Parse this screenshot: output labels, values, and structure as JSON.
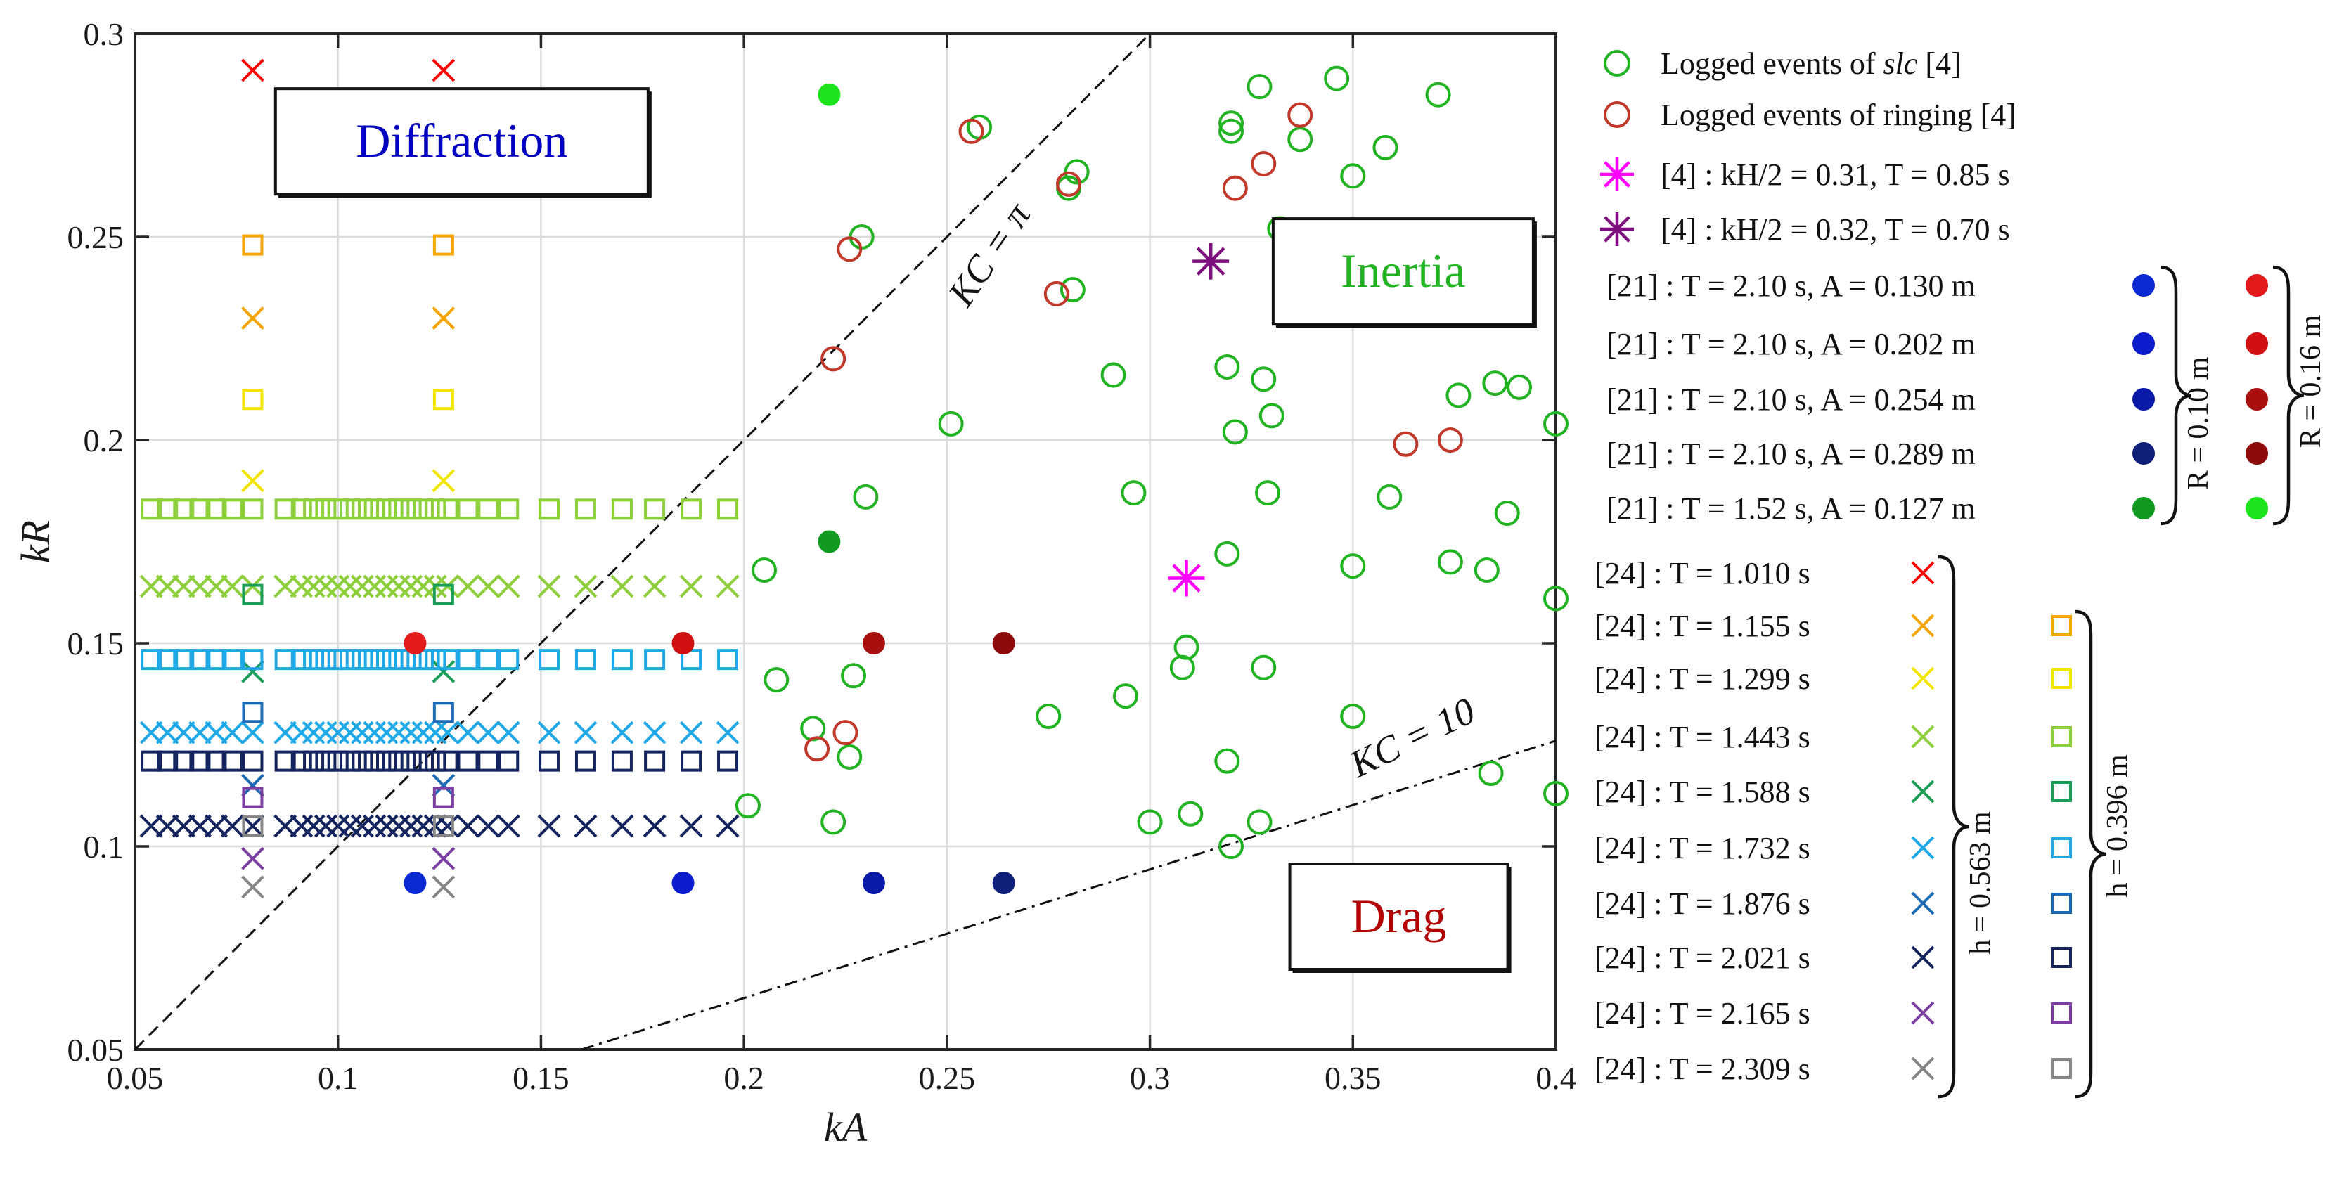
{
  "chart_data": {
    "type": "scatter",
    "title": "",
    "xlabel": "kA",
    "ylabel": "kR",
    "xlim": [
      0.05,
      0.4
    ],
    "ylim": [
      0.05,
      0.3
    ],
    "xticks": [
      0.05,
      0.1,
      0.15,
      0.2,
      0.25,
      0.3,
      0.35,
      0.4
    ],
    "yticks": [
      0.05,
      0.1,
      0.15,
      0.2,
      0.25,
      0.3
    ],
    "xtick_labels": [
      "0.05",
      "0.1",
      "0.15",
      "0.2",
      "0.25",
      "0.3",
      "0.35",
      "0.4"
    ],
    "ytick_labels": [
      "0.05",
      "0.1",
      "0.15",
      "0.2",
      "0.25",
      "0.3"
    ],
    "grid": true,
    "regions": [
      {
        "label": "Diffraction",
        "color": "#0000c0",
        "x": 0.1305,
        "y": 0.2735
      },
      {
        "label": "Inertia",
        "color": "#22b322",
        "x": 0.3624,
        "y": 0.2415
      },
      {
        "label": "Drag",
        "color": "#b30000",
        "x": 0.3613,
        "y": 0.0827
      }
    ],
    "lines": [
      {
        "label": "KC = π",
        "style": "dashed",
        "points": [
          [
            0.05,
            0.05
          ],
          [
            0.3,
            0.3
          ]
        ],
        "label_at": [
          0.263,
          0.244
        ],
        "label_angle": -56
      },
      {
        "label": "KC = 10",
        "style": "dashdot",
        "points": [
          [
            0.16,
            0.05
          ],
          [
            0.4,
            0.126
          ]
        ],
        "label_at": [
          0.366,
          0.124
        ],
        "label_angle": -26
      }
    ],
    "series": [
      {
        "name": "Logged events of slc [4]",
        "label_prefix": "Logged events of ",
        "label_italic": "slc",
        "label_suffix": " [4]",
        "marker": "circle-open",
        "color": "#22b322",
        "x": [
          0.258,
          0.282,
          0.281,
          0.229,
          0.28,
          0.327,
          0.32,
          0.32,
          0.337,
          0.346,
          0.358,
          0.371,
          0.35,
          0.332,
          0.319,
          0.291,
          0.251,
          0.321,
          0.33,
          0.328,
          0.376,
          0.385,
          0.391,
          0.4,
          0.329,
          0.359,
          0.319,
          0.296,
          0.23,
          0.205,
          0.388,
          0.374,
          0.383,
          0.35,
          0.309,
          0.308,
          0.328,
          0.294,
          0.208,
          0.227,
          0.275,
          0.217,
          0.35,
          0.384,
          0.226,
          0.201,
          0.319,
          0.3,
          0.31,
          0.327,
          0.222,
          0.32,
          0.4,
          0.4
        ],
        "y": [
          0.277,
          0.266,
          0.237,
          0.25,
          0.262,
          0.287,
          0.278,
          0.276,
          0.274,
          0.289,
          0.272,
          0.285,
          0.265,
          0.252,
          0.218,
          0.216,
          0.204,
          0.202,
          0.206,
          0.215,
          0.211,
          0.214,
          0.213,
          0.204,
          0.187,
          0.186,
          0.172,
          0.187,
          0.186,
          0.168,
          0.182,
          0.17,
          0.168,
          0.169,
          0.149,
          0.144,
          0.144,
          0.137,
          0.141,
          0.142,
          0.132,
          0.129,
          0.132,
          0.118,
          0.122,
          0.11,
          0.121,
          0.106,
          0.108,
          0.106,
          0.106,
          0.1,
          0.161,
          0.113
        ]
      },
      {
        "name": "Logged events of ringing [4]",
        "marker": "circle-open",
        "color": "#c0392b",
        "x": [
          0.256,
          0.28,
          0.277,
          0.226,
          0.222,
          0.337,
          0.328,
          0.321,
          0.363,
          0.374,
          0.225,
          0.218
        ],
        "y": [
          0.276,
          0.263,
          0.236,
          0.247,
          0.22,
          0.28,
          0.268,
          0.262,
          0.199,
          0.2,
          0.128,
          0.124
        ]
      },
      {
        "name": "[4] : kH/2 = 0.31, T = 0.85 s",
        "marker": "asterisk",
        "color": "#ff00ff",
        "x": [
          0.309
        ],
        "y": [
          0.166
        ]
      },
      {
        "name": "[4] : kH/2 = 0.32, T = 0.70 s",
        "marker": "asterisk",
        "color": "#7d0e7d",
        "x": [
          0.315
        ],
        "y": [
          0.244
        ]
      },
      {
        "name": "[21] : T = 2.10 s, A = 0.130 m",
        "marker": "dot",
        "color_R010": "#0a2bd4",
        "color_R016": "#e31a1c",
        "x_R010": [
          0.119
        ],
        "y_R010": [
          0.091
        ],
        "x_R016": [
          0.119
        ],
        "y_R016": [
          0.15
        ]
      },
      {
        "name": "[21] : T = 2.10 s, A = 0.202 m",
        "marker": "dot",
        "color_R010": "#0a1ccc",
        "color_R016": "#d01010",
        "x_R010": [
          0.185
        ],
        "y_R010": [
          0.091
        ],
        "x_R016": [
          0.185
        ],
        "y_R016": [
          0.15
        ]
      },
      {
        "name": "[21] : T = 2.10 s, A = 0.254 m",
        "marker": "dot",
        "color_R010": "#0a1aa8",
        "color_R016": "#a81010",
        "x_R010": [
          0.232
        ],
        "y_R010": [
          0.091
        ],
        "x_R016": [
          0.232
        ],
        "y_R016": [
          0.15
        ]
      },
      {
        "name": "[21] : T = 2.10 s, A = 0.289 m",
        "marker": "dot",
        "color_R010": "#10207a",
        "color_R016": "#8e0a0a",
        "x_R010": [
          0.264
        ],
        "y_R010": [
          0.091
        ],
        "x_R016": [
          0.264
        ],
        "y_R016": [
          0.15
        ]
      },
      {
        "name": "[21] : T = 1.52 s, A = 0.127 m",
        "marker": "dot",
        "color_R010": "#109a20",
        "color_R016": "#1ce31c",
        "x_R010": [
          0.221
        ],
        "y_R010": [
          0.175
        ],
        "x_R016": [
          0.221
        ],
        "y_R016": [
          0.285
        ]
      },
      {
        "name": "[24] : T = 1.010 s",
        "marker": "x",
        "color": "#ff0000",
        "y": 0.291,
        "sq": null
      },
      {
        "name": "[24] : T = 1.155 s",
        "marker": "x",
        "color": "#f5a500",
        "y": 0.23,
        "sq": 0.248
      },
      {
        "name": "[24] : T = 1.299 s",
        "marker": "x",
        "color": "#f2e600",
        "y": 0.19,
        "sq": 0.21
      },
      {
        "name": "[24] : T = 1.443 s",
        "marker": "x",
        "color": "#8ccf3a",
        "y": 0.164,
        "sq": 0.183
      },
      {
        "name": "[24] : T = 1.588 s",
        "marker": "x",
        "color": "#1a9e55",
        "y": 0.143,
        "sq": 0.162
      },
      {
        "name": "[24] : T = 1.732 s",
        "marker": "x",
        "color": "#1ea8e8",
        "y": 0.128,
        "sq": 0.146
      },
      {
        "name": "[24] : T = 1.876 s",
        "marker": "x",
        "color": "#1e6bb5",
        "y": 0.115,
        "sq": 0.133
      },
      {
        "name": "[24] : T = 2.021 s",
        "marker": "x",
        "color": "#13245e",
        "y": 0.105,
        "sq": 0.121
      },
      {
        "name": "[24] : T = 2.165 s",
        "marker": "x",
        "color": "#7a3fa0",
        "y": 0.097,
        "sq": 0.112
      },
      {
        "name": "[24] : T = 2.309 s",
        "marker": "x",
        "color": "#858585",
        "y": 0.09,
        "sq": 0.105
      }
    ],
    "ref24_rows": {
      "x_full": [
        0.054,
        0.058,
        0.062,
        0.066,
        0.07,
        0.074,
        0.079,
        0.087,
        0.091,
        0.094,
        0.097,
        0.1,
        0.103,
        0.106,
        0.109,
        0.112,
        0.115,
        0.118,
        0.121,
        0.124,
        0.127,
        0.132,
        0.137,
        0.142,
        0.152,
        0.161,
        0.17,
        0.178,
        0.187,
        0.196
      ],
      "x_sparse": [
        0.079,
        0.126
      ],
      "full_rows_cross": [
        0.164,
        0.128,
        0.105
      ],
      "full_rows_square": [
        0.183,
        0.146,
        0.121
      ]
    },
    "legend": {
      "placement": "outside-right",
      "brace_R010": "R = 0.10 m",
      "brace_R016": "R = 0.16 m",
      "brace_h563": "h = 0.563 m",
      "brace_h396": "h = 0.396 m"
    }
  }
}
